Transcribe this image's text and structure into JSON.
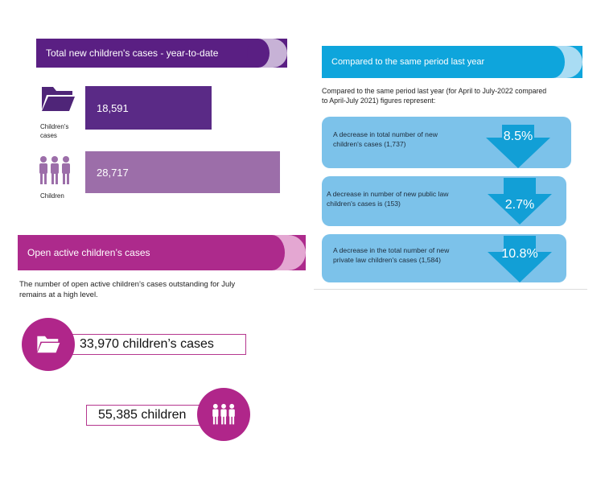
{
  "new_cases": {
    "banner_title": "Total new children's cases -  year-to-date",
    "cases_value": "18,591",
    "cases_label_line1": "Children's",
    "cases_label_line2": "cases",
    "children_value": "28,717",
    "children_label": "Children",
    "colors": {
      "banner": "#5a1f83",
      "cases_bar": "#5a2a86",
      "children_bar": "#9c6ea9"
    }
  },
  "open_cases": {
    "banner_title": "Open active children’s cases",
    "description_line1": "The number of open active children’s cases outstanding for July",
    "description_line2": "remains at a high level.",
    "cases_text": "33,970 children’s cases",
    "children_text": "55,385 children",
    "colors": {
      "banner": "#ad2a8c",
      "circle": "#b0268a"
    }
  },
  "comparison": {
    "banner_title": "Compared to the same period last year",
    "intro_line1": "Compared to the same period last year (for April to July-2022 compared",
    "intro_line2": "to April-July 2021) figures represent:",
    "items": [
      {
        "line1": "A decrease in total number of new",
        "line2": "children's cases (1,737)",
        "pct": "8.5%"
      },
      {
        "line1": "A decrease in number of new public law",
        "line2": "children's cases is (153)",
        "pct": "2.7%"
      },
      {
        "line1": "A decrease in the total number of new",
        "line2": "private law children's cases (1,584)",
        "pct": "10.8%"
      }
    ],
    "colors": {
      "banner": "#0ea5dc",
      "card": "#7cc2ea",
      "arrow": "#129fd6"
    }
  },
  "icons": {
    "folder": "folder-icon",
    "people": "people-group-icon",
    "arrow": "down-arrow-icon"
  }
}
